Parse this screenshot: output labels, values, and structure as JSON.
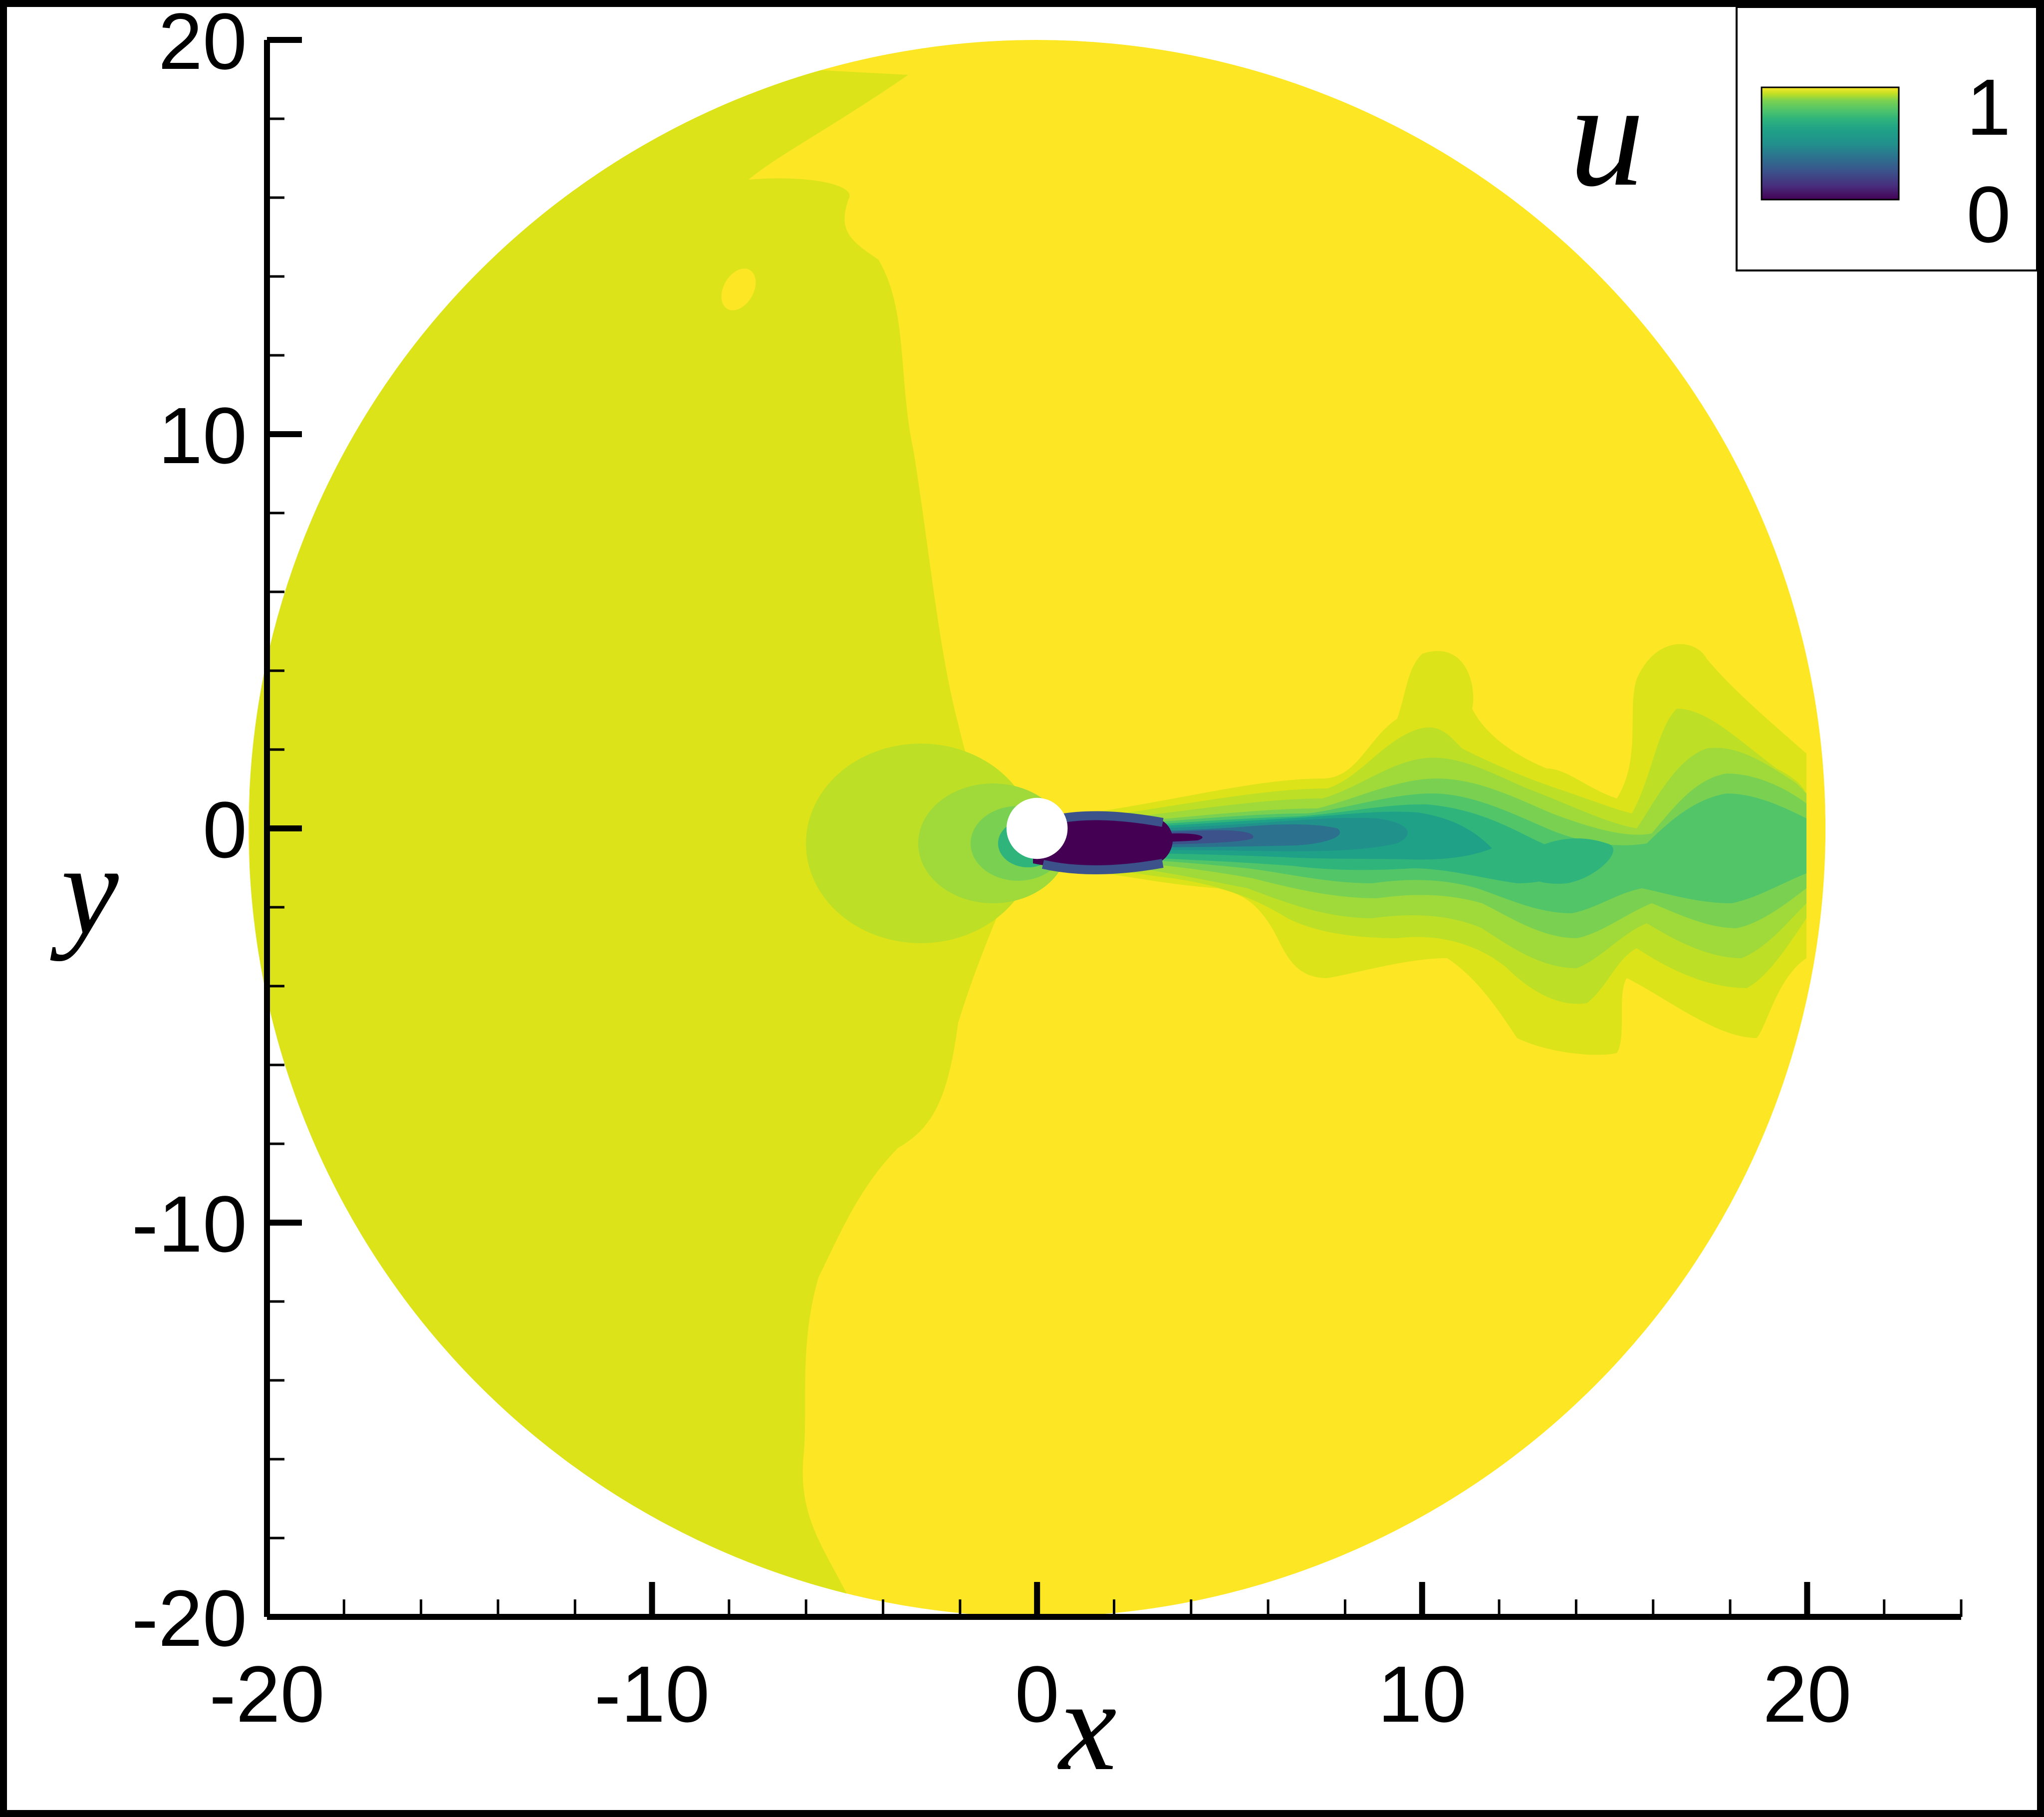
{
  "chart_data": {
    "type": "heatmap",
    "title": "",
    "xlabel": "x",
    "ylabel": "y",
    "xlim": [
      -20,
      24
    ],
    "ylim": [
      -20,
      20
    ],
    "x_ticks": [
      -20,
      -10,
      0,
      10,
      20
    ],
    "y_ticks": [
      -20,
      -10,
      0,
      10,
      20
    ],
    "x_tick_labels": [
      "-20",
      "-10",
      "0",
      "10",
      "20"
    ],
    "y_tick_labels": [
      "-20",
      "-10",
      "0",
      "10",
      "20"
    ],
    "x_minor_step": 2,
    "y_minor_step": 2,
    "domain": {
      "shape": "circle",
      "center": [
        0,
        0
      ],
      "radius": 20
    },
    "obstacle": {
      "shape": "circle",
      "center": [
        0,
        0
      ],
      "radius": 0.5
    },
    "grid": false,
    "legend": {
      "position": "top-right",
      "variable": "u",
      "max_label": "1",
      "min_label": "0",
      "min": 0,
      "max": 1
    },
    "colormap": "viridis",
    "colors": {
      "u_1_00": "#fde725",
      "u_0_97": "#dce319",
      "u_0_93": "#bddf26",
      "u_0_87": "#9fda3a",
      "u_0_80": "#7ad151",
      "u_0_72": "#52c569",
      "u_0_62": "#2fb47c",
      "u_0_52": "#1fa187",
      "u_0_42": "#21918c",
      "u_0_32": "#2c728e",
      "u_0_22": "#3b528b",
      "u_0_12": "#472d7b",
      "u_0_00": "#440154"
    },
    "regions": [
      {
        "description_level": 1.0,
        "region": "free stream, upper right and lower right of domain"
      },
      {
        "description_level": 0.97,
        "region": "left (upstream) half of domain"
      },
      {
        "description_level": 0.0,
        "region": "recirculation bubble behind obstacle, x 0.5 to 3"
      },
      {
        "description_level": 0.5,
        "region": "meandering wake, x 3 to 20"
      }
    ]
  }
}
